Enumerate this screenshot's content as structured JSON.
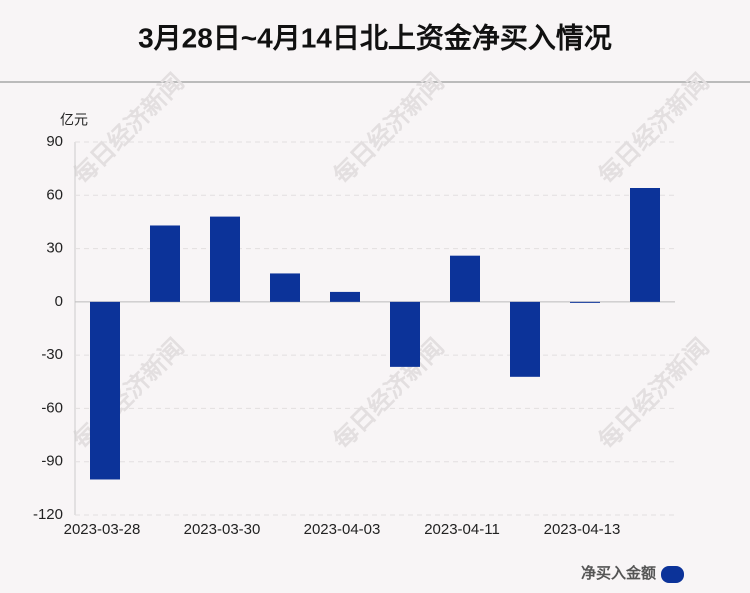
{
  "chart_data": {
    "type": "bar",
    "title": "3月28日~4月14日北上资金净买入情况",
    "y_label": "亿元",
    "watermark": "每日经济新闻",
    "categories": [
      "2023-03-28",
      null,
      "2023-03-30",
      null,
      "2023-04-03",
      null,
      "2023-04-11",
      null,
      "2023-04-13",
      null
    ],
    "series": [
      {
        "name": "净买入金额",
        "color": "#0c3399",
        "values": [
          -100,
          43,
          48,
          16,
          5.6,
          -36.6,
          26,
          -42.2,
          -0.5,
          64.1
        ]
      }
    ],
    "ylim": [
      -120,
      90
    ],
    "yticks": [
      -120,
      -90,
      -60,
      -30,
      0,
      30,
      60,
      90
    ],
    "grid": true,
    "legend": "bottom-right"
  }
}
